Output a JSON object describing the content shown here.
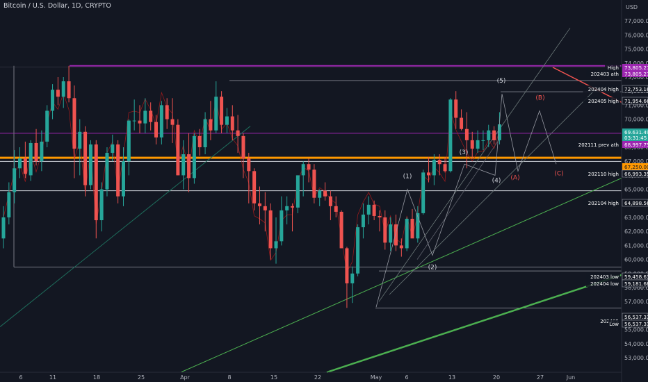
{
  "header": {
    "symbol": "Bitcoin / U.S. Dollar, 1D, CRYPTO"
  },
  "currency": "USD",
  "colors": {
    "up": "#26a69a",
    "down": "#ef5350",
    "purple": "#9c27b0",
    "orange": "#ff9800",
    "green": "#4caf50",
    "bg": "#131722"
  },
  "price_axis": {
    "ticks": [
      "77,000.00",
      "76,000.00",
      "75,000.00",
      "74,000.00",
      "73,000.00",
      "72,000.00",
      "71,000.00",
      "70,000.00",
      "69,000.00",
      "68,000.00",
      "67,000.00",
      "66,000.00",
      "65,000.00",
      "64,000.00",
      "63,000.00",
      "62,000.00",
      "61,000.00",
      "60,000.00",
      "59,000.00",
      "58,000.00",
      "57,000.00",
      "56,000.00",
      "55,000.00",
      "54,000.00",
      "53,000.00"
    ]
  },
  "time_axis": {
    "ticks": [
      "6",
      "11",
      "18",
      "25",
      "Apr",
      "8",
      "15",
      "22",
      "May",
      "6",
      "13",
      "20",
      "27",
      "Jun"
    ]
  },
  "level_labels": [
    {
      "label": "High",
      "price": "73,805.27"
    },
    {
      "label": "202403 ath",
      "price": "73,805.27"
    },
    {
      "label": "202404 high",
      "price": "72,753.16"
    },
    {
      "label": "202405 high",
      "price": "71,954.66"
    },
    {
      "label": "",
      "price": "69,631.49"
    },
    {
      "label": "",
      "price": "03:31:45"
    },
    {
      "label": "202111 prev ath",
      "price": "68,997.75"
    },
    {
      "label": "",
      "price": "67,250.00"
    },
    {
      "label": "202110 high",
      "price": "66,993.35"
    },
    {
      "label": "202104 high",
      "price": "64,898.56"
    },
    {
      "label": "202403 low",
      "price": "59,458.63"
    },
    {
      "label": "202404 low",
      "price": "59,181.68"
    },
    {
      "label": "",
      "price": "56,537.33"
    },
    {
      "label": "202405",
      "price": ""
    },
    {
      "label": "Low",
      "price": "56,537.33"
    }
  ],
  "wave_labels": [
    "(1)",
    "(2)",
    "(3)",
    "(4)",
    "(5)",
    "(A)",
    "(B)",
    "(C)"
  ],
  "chart_data": {
    "type": "candlestick",
    "series": [
      {
        "o": 61500,
        "h": 63800,
        "l": 60800,
        "c": 63000
      },
      {
        "o": 63000,
        "h": 65500,
        "l": 62500,
        "c": 64800
      },
      {
        "o": 64800,
        "h": 67800,
        "l": 64000,
        "c": 66500
      },
      {
        "o": 66500,
        "h": 68000,
        "l": 65800,
        "c": 67200
      },
      {
        "o": 67200,
        "h": 68400,
        "l": 65800,
        "c": 66100
      },
      {
        "o": 66000,
        "h": 68500,
        "l": 65600,
        "c": 68300
      },
      {
        "o": 68300,
        "h": 69300,
        "l": 66700,
        "c": 67000
      },
      {
        "o": 67000,
        "h": 69200,
        "l": 66300,
        "c": 68400
      },
      {
        "o": 68400,
        "h": 71000,
        "l": 68000,
        "c": 70600
      },
      {
        "o": 70600,
        "h": 72500,
        "l": 70000,
        "c": 72100
      },
      {
        "o": 72100,
        "h": 73000,
        "l": 71000,
        "c": 71600
      },
      {
        "o": 71600,
        "h": 73000,
        "l": 70800,
        "c": 72700
      },
      {
        "o": 72700,
        "h": 73800,
        "l": 71200,
        "c": 71500
      },
      {
        "o": 71500,
        "h": 72400,
        "l": 65800,
        "c": 67900
      },
      {
        "o": 67900,
        "h": 70000,
        "l": 66000,
        "c": 69100
      },
      {
        "o": 69100,
        "h": 69500,
        "l": 64500,
        "c": 65300
      },
      {
        "o": 65300,
        "h": 68500,
        "l": 65000,
        "c": 68200
      },
      {
        "o": 68200,
        "h": 68500,
        "l": 61500,
        "c": 62800
      },
      {
        "o": 62800,
        "h": 65500,
        "l": 62000,
        "c": 65000
      },
      {
        "o": 65000,
        "h": 68000,
        "l": 64500,
        "c": 67600
      },
      {
        "o": 67600,
        "h": 68900,
        "l": 67000,
        "c": 68200
      },
      {
        "o": 68200,
        "h": 68500,
        "l": 64000,
        "c": 64500
      },
      {
        "o": 64500,
        "h": 68000,
        "l": 63800,
        "c": 67000
      },
      {
        "o": 67000,
        "h": 70000,
        "l": 66000,
        "c": 69900
      },
      {
        "o": 69900,
        "h": 71400,
        "l": 69200,
        "c": 69900
      },
      {
        "o": 69900,
        "h": 71000,
        "l": 69000,
        "c": 69700
      },
      {
        "o": 69700,
        "h": 71500,
        "l": 69000,
        "c": 70600
      },
      {
        "o": 70600,
        "h": 71200,
        "l": 69200,
        "c": 69800
      },
      {
        "o": 69800,
        "h": 70300,
        "l": 68200,
        "c": 68700
      },
      {
        "o": 68700,
        "h": 71300,
        "l": 68200,
        "c": 71000
      },
      {
        "o": 71000,
        "h": 71500,
        "l": 69300,
        "c": 70000
      },
      {
        "o": 70000,
        "h": 71500,
        "l": 68300,
        "c": 69600
      },
      {
        "o": 69600,
        "h": 70000,
        "l": 66000,
        "c": 66000
      },
      {
        "o": 66000,
        "h": 68500,
        "l": 65000,
        "c": 67500
      },
      {
        "o": 67500,
        "h": 69000,
        "l": 64800,
        "c": 65800
      },
      {
        "o": 65800,
        "h": 69000,
        "l": 65400,
        "c": 68800
      },
      {
        "o": 68800,
        "h": 69300,
        "l": 67400,
        "c": 68000
      },
      {
        "o": 68000,
        "h": 70500,
        "l": 67500,
        "c": 70000
      },
      {
        "o": 70000,
        "h": 71300,
        "l": 68500,
        "c": 69200
      },
      {
        "o": 69200,
        "h": 72700,
        "l": 69000,
        "c": 71600
      },
      {
        "o": 71600,
        "h": 72000,
        "l": 69000,
        "c": 69600
      },
      {
        "o": 69600,
        "h": 70800,
        "l": 69000,
        "c": 70200
      },
      {
        "o": 70200,
        "h": 71000,
        "l": 68500,
        "c": 69200
      },
      {
        "o": 69200,
        "h": 70300,
        "l": 67600,
        "c": 68800
      },
      {
        "o": 68800,
        "h": 69000,
        "l": 65800,
        "c": 67200
      },
      {
        "o": 67200,
        "h": 67600,
        "l": 64000,
        "c": 66300
      },
      {
        "o": 66300,
        "h": 66500,
        "l": 63500,
        "c": 64000
      },
      {
        "o": 64000,
        "h": 65200,
        "l": 62500,
        "c": 63800
      },
      {
        "o": 63800,
        "h": 64800,
        "l": 62000,
        "c": 63500
      },
      {
        "o": 63500,
        "h": 64000,
        "l": 60000,
        "c": 60800
      },
      {
        "o": 60800,
        "h": 63000,
        "l": 59700,
        "c": 61300
      },
      {
        "o": 61300,
        "h": 64500,
        "l": 61000,
        "c": 63500
      },
      {
        "o": 63500,
        "h": 64500,
        "l": 62500,
        "c": 63800
      },
      {
        "o": 63800,
        "h": 64000,
        "l": 62000,
        "c": 63700
      },
      {
        "o": 63700,
        "h": 66000,
        "l": 63300,
        "c": 66000
      },
      {
        "o": 66000,
        "h": 67000,
        "l": 64500,
        "c": 66800
      },
      {
        "o": 66800,
        "h": 67200,
        "l": 65500,
        "c": 66400
      },
      {
        "o": 66400,
        "h": 66800,
        "l": 64000,
        "c": 64400
      },
      {
        "o": 64400,
        "h": 65000,
        "l": 63800,
        "c": 64900
      },
      {
        "o": 64900,
        "h": 65500,
        "l": 64200,
        "c": 64500
      },
      {
        "o": 64500,
        "h": 64900,
        "l": 62800,
        "c": 63800
      },
      {
        "o": 63800,
        "h": 64500,
        "l": 63000,
        "c": 63400
      },
      {
        "o": 63400,
        "h": 63500,
        "l": 60800,
        "c": 60800
      },
      {
        "o": 60800,
        "h": 60900,
        "l": 56550,
        "c": 58300
      },
      {
        "o": 58300,
        "h": 59500,
        "l": 56900,
        "c": 59000
      },
      {
        "o": 59000,
        "h": 62500,
        "l": 58800,
        "c": 62300
      },
      {
        "o": 62300,
        "h": 64000,
        "l": 61500,
        "c": 63200
      },
      {
        "o": 63200,
        "h": 64500,
        "l": 62500,
        "c": 63900
      },
      {
        "o": 63900,
        "h": 64200,
        "l": 62800,
        "c": 63100
      },
      {
        "o": 63100,
        "h": 63500,
        "l": 62000,
        "c": 63000
      },
      {
        "o": 63000,
        "h": 63500,
        "l": 60700,
        "c": 61200
      },
      {
        "o": 61200,
        "h": 63000,
        "l": 60600,
        "c": 62500
      },
      {
        "o": 62500,
        "h": 63200,
        "l": 60600,
        "c": 61000
      },
      {
        "o": 61000,
        "h": 61500,
        "l": 60200,
        "c": 60800
      },
      {
        "o": 60800,
        "h": 63000,
        "l": 60600,
        "c": 62900
      },
      {
        "o": 62900,
        "h": 63600,
        "l": 61600,
        "c": 61500
      },
      {
        "o": 61500,
        "h": 63800,
        "l": 61200,
        "c": 63300
      },
      {
        "o": 63300,
        "h": 66400,
        "l": 63200,
        "c": 66200
      },
      {
        "o": 66200,
        "h": 67300,
        "l": 65500,
        "c": 66000
      },
      {
        "o": 66000,
        "h": 67500,
        "l": 65300,
        "c": 67100
      },
      {
        "o": 67100,
        "h": 67500,
        "l": 66000,
        "c": 66800
      },
      {
        "o": 66800,
        "h": 67300,
        "l": 66200,
        "c": 66300
      },
      {
        "o": 66300,
        "h": 71500,
        "l": 66200,
        "c": 71400
      },
      {
        "o": 71400,
        "h": 72000,
        "l": 69300,
        "c": 70100
      },
      {
        "o": 70100,
        "h": 70700,
        "l": 69200,
        "c": 69300
      },
      {
        "o": 69300,
        "h": 70500,
        "l": 66500,
        "c": 68500
      },
      {
        "o": 68500,
        "h": 69100,
        "l": 67200,
        "c": 67900
      },
      {
        "o": 67900,
        "h": 69200,
        "l": 67600,
        "c": 68500
      },
      {
        "o": 68500,
        "h": 69200,
        "l": 67800,
        "c": 68500
      },
      {
        "o": 68500,
        "h": 69600,
        "l": 68000,
        "c": 69200
      },
      {
        "o": 69200,
        "h": 69500,
        "l": 68200,
        "c": 68500
      },
      {
        "o": 68500,
        "h": 70500,
        "l": 68200,
        "c": 69631
      }
    ],
    "ylim": [
      52900,
      78000
    ],
    "xlabel": "",
    "ylabel": "",
    "title": ""
  }
}
